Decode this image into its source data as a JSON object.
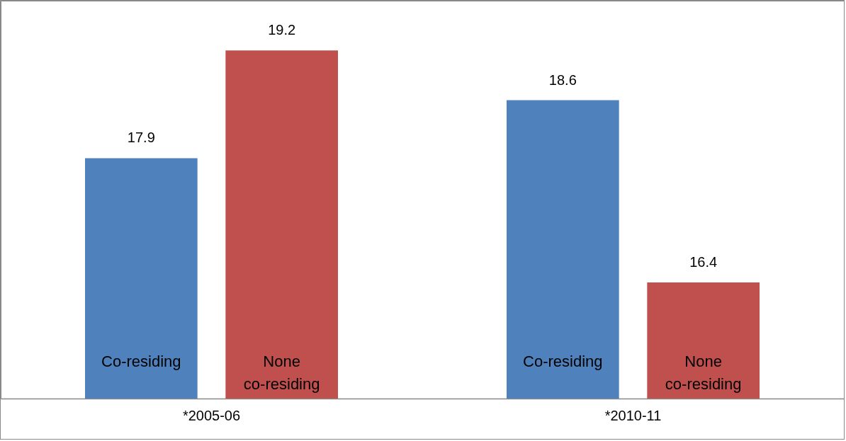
{
  "chart_data": {
    "type": "bar",
    "categories": [
      "*2005-06",
      "*2010-11"
    ],
    "series": [
      {
        "name": "Co-residing",
        "color": "#4f81bd",
        "values": [
          17.9,
          18.6
        ]
      },
      {
        "name": "None co-residing",
        "color": "#c0504d",
        "values": [
          19.2,
          16.4
        ]
      }
    ],
    "ylim": [
      15,
      19.8
    ],
    "data_labels": true,
    "tick_labels": "x"
  }
}
